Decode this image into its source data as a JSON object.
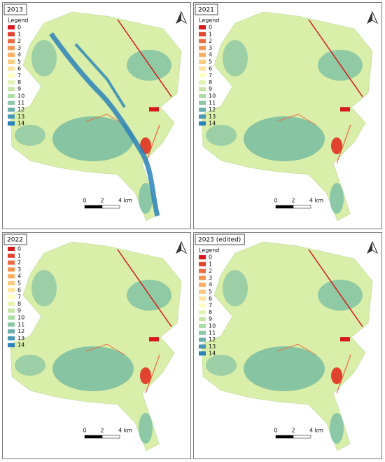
{
  "legend_colors": [
    "#d7191c",
    "#e0432e",
    "#ea6c40",
    "#f39552",
    "#fdae61",
    "#fec980",
    "#fee4a0",
    "#ffffbf",
    "#e3f2b3",
    "#c7e6a8",
    "#abdda4",
    "#8cc8a6",
    "#6bb0af",
    "#4a98b5",
    "#2b83ba"
  ],
  "panels": [
    {
      "title": "2013",
      "legend_title": "Legend",
      "legend_labels": [
        "0",
        "1",
        "2",
        "3",
        "4",
        "5",
        "6",
        "7",
        "8",
        "9",
        "10",
        "11",
        "12",
        "13",
        "14"
      ],
      "scale_labels": [
        "0",
        "2",
        "4 km"
      ]
    },
    {
      "title": "2021",
      "legend_title": "Legend",
      "legend_labels": [
        "0",
        "1",
        "2",
        "3",
        "4",
        "5",
        "6",
        "7",
        "8",
        "9",
        "10",
        "11",
        "12",
        "13",
        "14"
      ],
      "scale_labels": [
        "0",
        "2",
        "4 km"
      ]
    },
    {
      "title": "2022",
      "legend_labels": [
        "0",
        "1",
        "2",
        "3",
        "4",
        "5",
        "6",
        "7",
        "8",
        "9",
        "10",
        "11",
        "12",
        "13",
        "14"
      ],
      "scale_labels": [
        "0",
        "2",
        "4 km"
      ]
    },
    {
      "title": "2023 (edited)",
      "legend_title": "Legend",
      "legend_labels": [
        "0",
        "1",
        "2",
        "3",
        "4",
        "5",
        "6",
        "7",
        "8",
        "9",
        "10",
        "11",
        "12",
        "13",
        "14"
      ],
      "scale_labels": [
        "0",
        "2",
        "4 km"
      ]
    }
  ]
}
